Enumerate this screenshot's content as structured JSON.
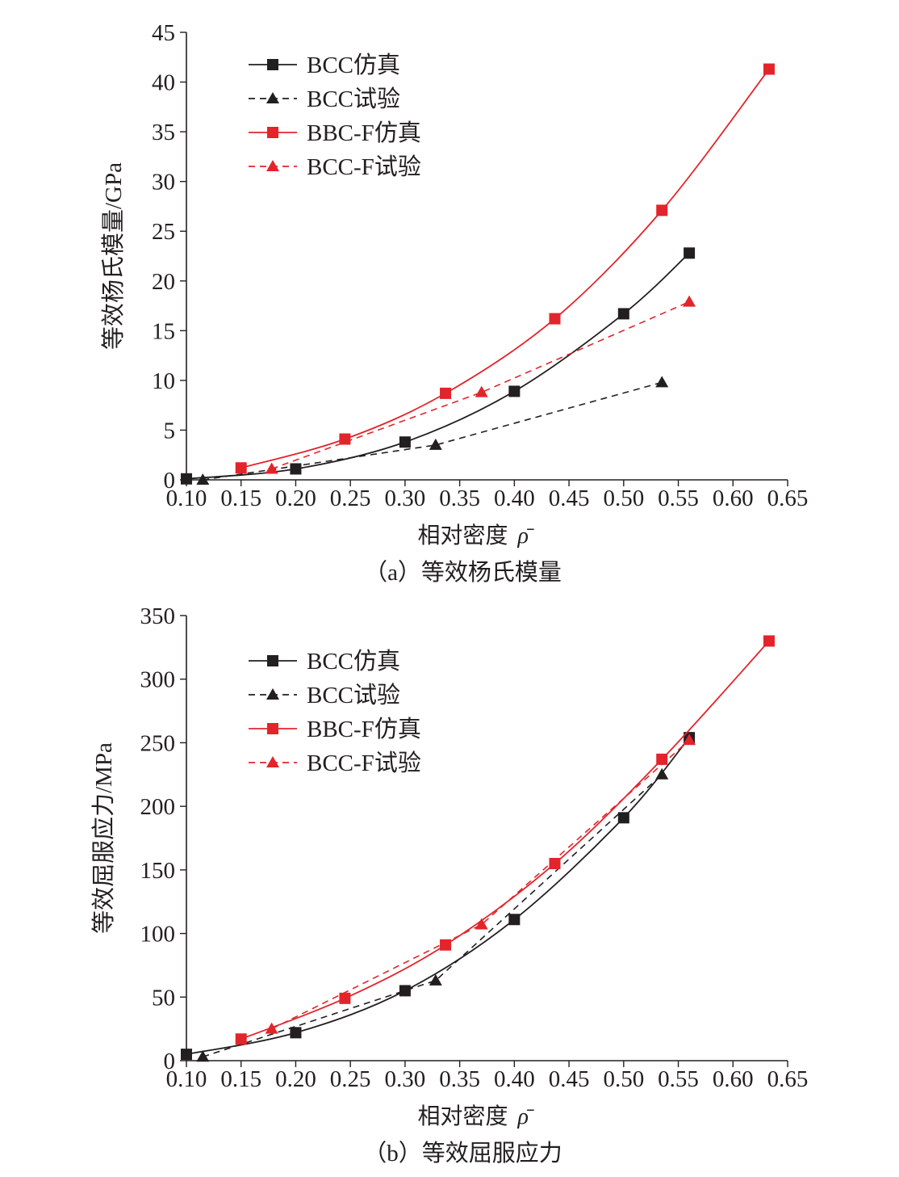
{
  "chart_data": [
    {
      "type": "line",
      "caption": "（a）等效杨氏模量",
      "xlabel": "相对密度",
      "xsymbol": "ρ̄",
      "ylabel": "等效杨氏模量/GPa",
      "xlim": [
        0.1,
        0.65
      ],
      "ylim": [
        0,
        45
      ],
      "xticks": [
        "0.10",
        "0.15",
        "0.20",
        "0.25",
        "0.30",
        "0.35",
        "0.40",
        "0.45",
        "0.50",
        "0.55",
        "0.60",
        "0.65"
      ],
      "yticks": [
        "0",
        "5",
        "10",
        "15",
        "20",
        "25",
        "30",
        "35",
        "40",
        "45"
      ],
      "grid": false,
      "legend_position": "top-left",
      "series": [
        {
          "name": "BCC仿真",
          "color": "#231f20",
          "style": "solid",
          "marker": "square",
          "x": [
            0.1,
            0.2,
            0.3,
            0.4,
            0.5,
            0.56
          ],
          "y": [
            0.1,
            1.1,
            3.8,
            8.9,
            16.7,
            22.8
          ]
        },
        {
          "name": "BCC试验",
          "color": "#231f20",
          "style": "dashed",
          "marker": "triangle",
          "x": [
            0.115,
            0.328,
            0.535
          ],
          "y": [
            0.0,
            3.5,
            9.8
          ]
        },
        {
          "name": "BBC-F仿真",
          "color": "#e3242b",
          "style": "solid",
          "marker": "square",
          "x": [
            0.15,
            0.245,
            0.337,
            0.437,
            0.535,
            0.633
          ],
          "y": [
            1.2,
            4.1,
            8.7,
            16.2,
            27.1,
            41.3
          ]
        },
        {
          "name": "BCC-F试验",
          "color": "#e3242b",
          "style": "dashed",
          "marker": "triangle",
          "x": [
            0.178,
            0.37,
            0.56
          ],
          "y": [
            1.1,
            8.8,
            17.9
          ]
        }
      ]
    },
    {
      "type": "line",
      "caption": "（b）等效屈服应力",
      "xlabel": "相对密度",
      "xsymbol": "ρ̄",
      "ylabel": "等效屈服应力/MPa",
      "xlim": [
        0.1,
        0.65
      ],
      "ylim": [
        0,
        350
      ],
      "xticks": [
        "0.10",
        "0.15",
        "0.20",
        "0.25",
        "0.30",
        "0.35",
        "0.40",
        "0.45",
        "0.50",
        "0.55",
        "0.60",
        "0.65"
      ],
      "yticks": [
        "0",
        "50",
        "100",
        "150",
        "200",
        "250",
        "300",
        "350"
      ],
      "grid": false,
      "legend_position": "top-left",
      "series": [
        {
          "name": "BCC仿真",
          "color": "#231f20",
          "style": "solid",
          "marker": "square",
          "x": [
            0.1,
            0.2,
            0.3,
            0.4,
            0.5,
            0.56
          ],
          "y": [
            5,
            22,
            55,
            111,
            191,
            254
          ]
        },
        {
          "name": "BCC试验",
          "color": "#231f20",
          "style": "dashed",
          "marker": "triangle",
          "x": [
            0.115,
            0.328,
            0.535
          ],
          "y": [
            3,
            63,
            225
          ]
        },
        {
          "name": "BBC-F仿真",
          "color": "#e3242b",
          "style": "solid",
          "marker": "square",
          "x": [
            0.15,
            0.245,
            0.337,
            0.437,
            0.535,
            0.633
          ],
          "y": [
            17,
            49,
            91,
            155,
            237,
            330
          ]
        },
        {
          "name": "BCC-F试验",
          "color": "#e3242b",
          "style": "dashed",
          "marker": "triangle",
          "x": [
            0.178,
            0.37,
            0.56
          ],
          "y": [
            25,
            107,
            252
          ]
        }
      ]
    }
  ]
}
